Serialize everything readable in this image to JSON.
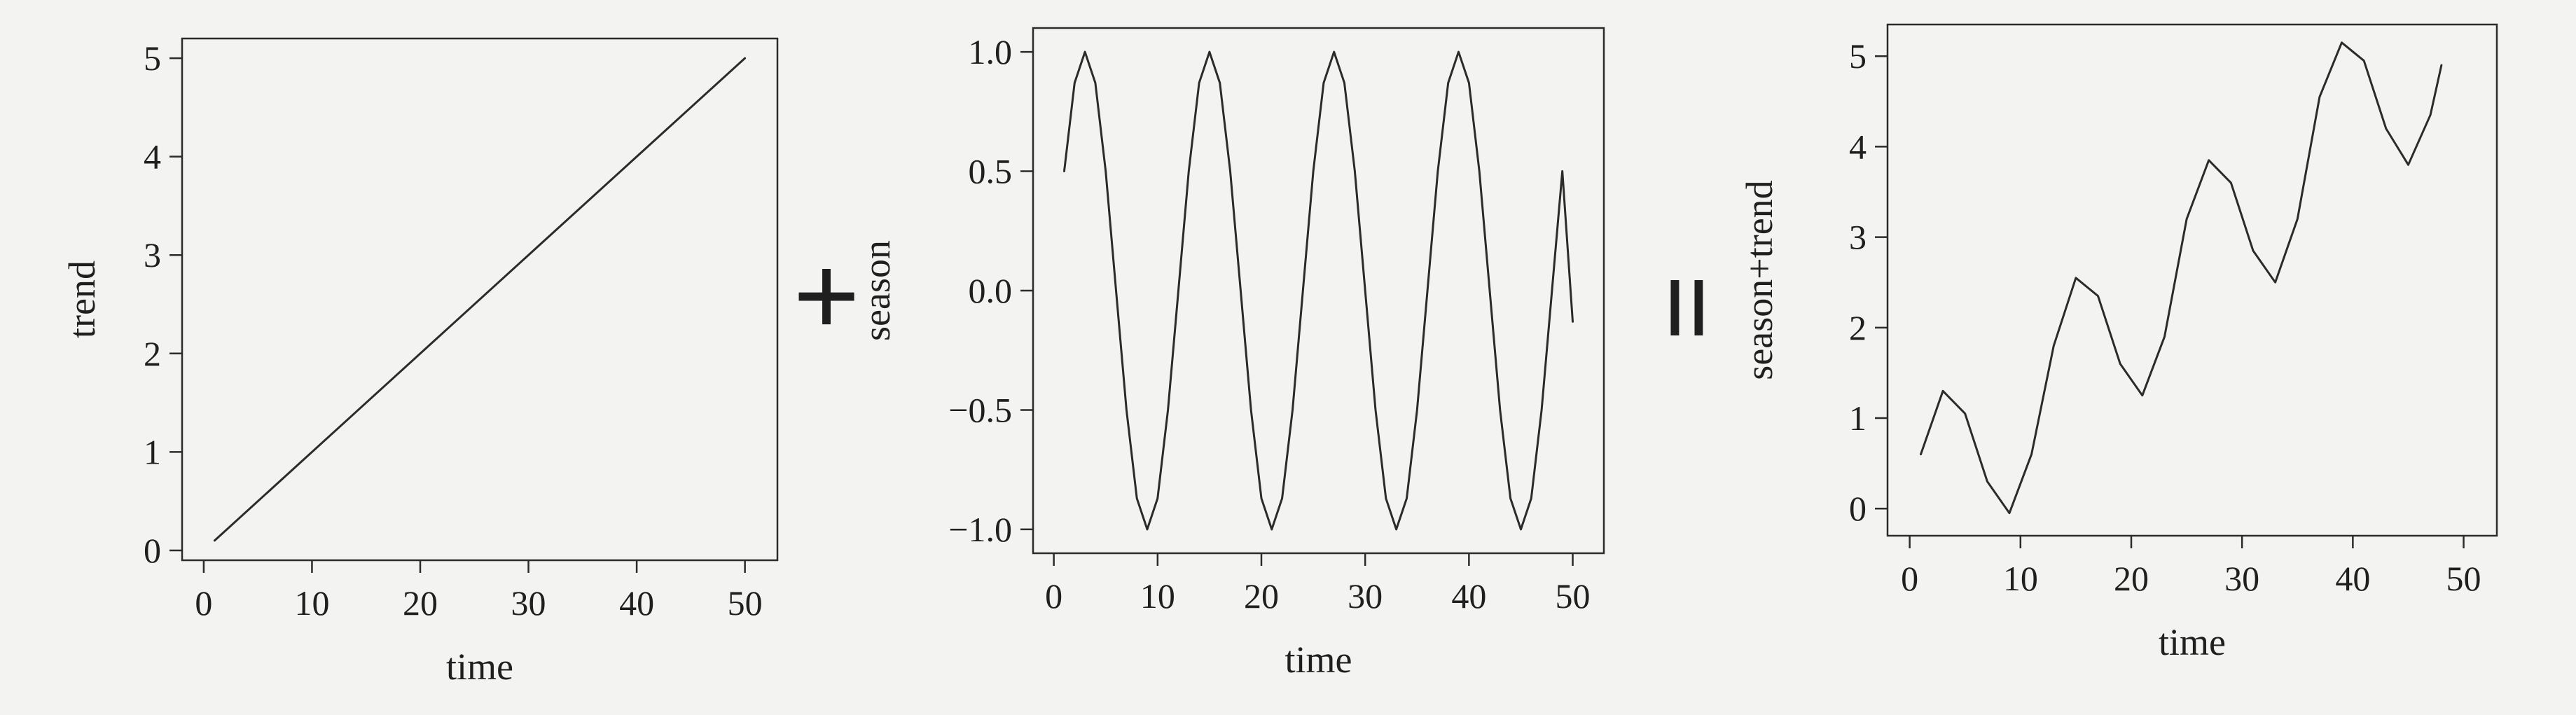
{
  "operators": {
    "plus": "+",
    "equals": "="
  },
  "chart_data": [
    {
      "type": "line",
      "xlabel": "time",
      "ylabel": "trend",
      "xlim": [
        -2,
        53
      ],
      "ylim": [
        -0.1,
        5.2
      ],
      "xticks": [
        0,
        10,
        20,
        30,
        40,
        50
      ],
      "yticks": [
        0,
        1,
        2,
        3,
        4,
        5
      ],
      "ytick_labels": [
        "0",
        "1",
        "2",
        "3",
        "4",
        "5"
      ],
      "grid": false,
      "series": [
        {
          "x": [
            1,
            50
          ],
          "y": [
            0.1,
            5.0
          ]
        }
      ]
    },
    {
      "type": "line",
      "xlabel": "time",
      "ylabel": "season",
      "xlim": [
        -2,
        53
      ],
      "ylim": [
        -1.1,
        1.1
      ],
      "xticks": [
        0,
        10,
        20,
        30,
        40,
        50
      ],
      "yticks": [
        -1.0,
        -0.5,
        0.0,
        0.5,
        1.0
      ],
      "ytick_labels": [
        "−1.0",
        "−0.5",
        "0.0",
        "0.5",
        "1.0"
      ],
      "grid": false,
      "series": [
        {
          "x": [
            1,
            2,
            3,
            4,
            5,
            6,
            7,
            8,
            9,
            10,
            11,
            12,
            13,
            14,
            15,
            16,
            17,
            18,
            19,
            20,
            21,
            22,
            23,
            24,
            25,
            26,
            27,
            28,
            29,
            30,
            31,
            32,
            33,
            34,
            35,
            36,
            37,
            38,
            39,
            40,
            41,
            42,
            43,
            44,
            45,
            46,
            47,
            48,
            49,
            50
          ],
          "y": [
            0.5,
            0.87,
            1.0,
            0.87,
            0.5,
            0.0,
            -0.5,
            -0.87,
            -1.0,
            -0.87,
            -0.5,
            0.0,
            0.5,
            0.87,
            1.0,
            0.87,
            0.5,
            0.0,
            -0.5,
            -0.87,
            -1.0,
            -0.87,
            -0.5,
            0.0,
            0.5,
            0.87,
            1.0,
            0.87,
            0.5,
            0.0,
            -0.5,
            -0.87,
            -1.0,
            -0.87,
            -0.5,
            0.0,
            0.5,
            0.87,
            1.0,
            0.87,
            0.5,
            0.0,
            -0.5,
            -0.87,
            -1.0,
            -0.87,
            -0.5,
            0.0,
            0.5,
            -0.13
          ]
        }
      ]
    },
    {
      "type": "line",
      "xlabel": "time",
      "ylabel": "season+trend",
      "xlim": [
        -2,
        53
      ],
      "ylim": [
        -0.3,
        5.35
      ],
      "xticks": [
        0,
        10,
        20,
        30,
        40,
        50
      ],
      "yticks": [
        0,
        1,
        2,
        3,
        4,
        5
      ],
      "ytick_labels": [
        "0",
        "1",
        "2",
        "3",
        "4",
        "5"
      ],
      "grid": false,
      "series": [
        {
          "x": [
            1,
            3,
            5,
            7,
            9,
            11,
            13,
            15,
            17,
            19,
            21,
            23,
            25,
            27,
            29,
            31,
            33,
            35,
            37,
            39,
            41,
            43,
            45,
            47,
            48
          ],
          "y": [
            0.6,
            1.3,
            1.05,
            0.3,
            -0.05,
            0.6,
            1.8,
            2.55,
            2.35,
            1.6,
            1.25,
            1.9,
            3.2,
            3.85,
            3.6,
            2.85,
            2.5,
            3.2,
            4.55,
            5.15,
            4.95,
            4.2,
            3.8,
            4.35,
            4.9
          ]
        }
      ]
    }
  ]
}
